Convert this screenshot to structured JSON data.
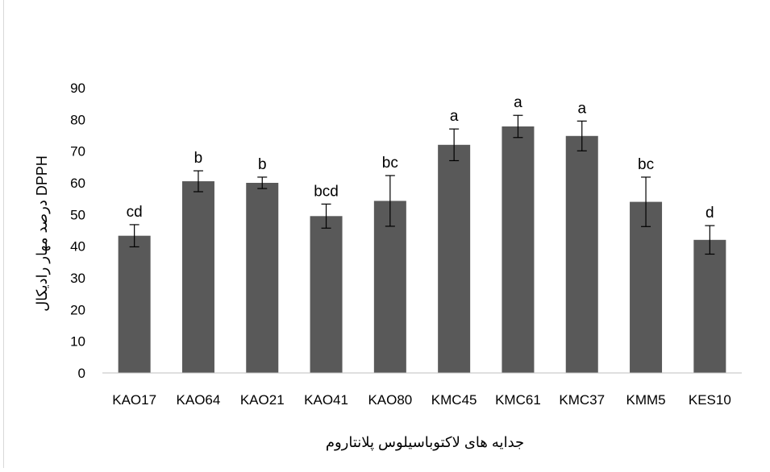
{
  "chart_data": {
    "type": "bar",
    "categories": [
      "KAO17",
      "KAO64",
      "KAO21",
      "KAO41",
      "KAO80",
      "KMC45",
      "KMC61",
      "KMC37",
      "KMM5",
      "KES10"
    ],
    "values": [
      43.3,
      60.5,
      60.0,
      49.5,
      54.3,
      72.0,
      77.8,
      74.8,
      54.0,
      42.0
    ],
    "errors": [
      3.5,
      3.3,
      1.8,
      3.8,
      8.0,
      5.0,
      3.5,
      4.7,
      7.8,
      4.5
    ],
    "letters": [
      "cd",
      "b",
      "b",
      "bcd",
      "bc",
      "a",
      "a",
      "a",
      "bc",
      "d"
    ],
    "title": "",
    "xlabel": "جدایه های لاکتوباسیلوس پلانتاروم",
    "ylabel": "درصد مهار رادیکال DPPH",
    "ylim": [
      0,
      90
    ],
    "yticks": [
      0,
      10,
      20,
      30,
      40,
      50,
      60,
      70,
      80,
      90
    ],
    "grid": false,
    "legend": "none",
    "bar_color": "#595959",
    "error_color": "#000000"
  }
}
